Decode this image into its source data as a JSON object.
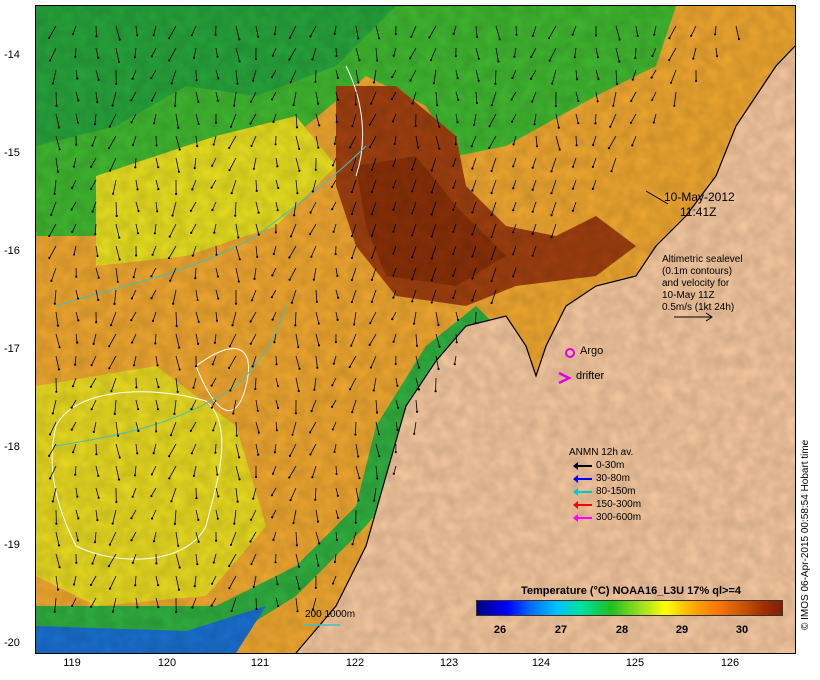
{
  "map": {
    "title": "Temperature (°C) NOAA16_L3U 17% ql>=4",
    "date": "10-May-2012",
    "time": "11:41Z",
    "credit": "© IMOS 06-Apr-2015 00:58:54 Hobart time",
    "y_axis": {
      "label": "",
      "ticks": [
        "-14",
        "-15",
        "-16",
        "-17",
        "-18",
        "-19",
        "-20"
      ]
    },
    "x_axis": {
      "label": "",
      "ticks": [
        "119",
        "120",
        "121",
        "122",
        "123",
        "124",
        "125",
        "126"
      ]
    }
  },
  "annotation": {
    "line1": "Altimetric sealevel",
    "line2": "(0.1m contours)",
    "line3": "and velocity for",
    "line4": "10-May 11Z",
    "line5": "0.5m/s (1kt 24h)"
  },
  "markers": {
    "argo": "Argo",
    "drifter": "drifter"
  },
  "anmn_legend": {
    "title": "ANMN 12h av.",
    "items": [
      {
        "label": "0-30m",
        "color": "#000000"
      },
      {
        "label": "30-80m",
        "color": "#0000ff"
      },
      {
        "label": "80-150m",
        "color": "#00c8c8"
      },
      {
        "label": "150-300m",
        "color": "#ff0000"
      },
      {
        "label": "300-600m",
        "color": "#ff00ff"
      }
    ]
  },
  "isobath": {
    "label": "200 1000m",
    "color": "#40c0c0"
  },
  "colorbar": {
    "ticks": [
      "26",
      "27",
      "28",
      "29",
      "30"
    ],
    "min": 25.4,
    "max": 30.6
  },
  "colors": {
    "land": "#f7c9a0",
    "warm": "#f0a020",
    "hot": "#a04010"
  }
}
